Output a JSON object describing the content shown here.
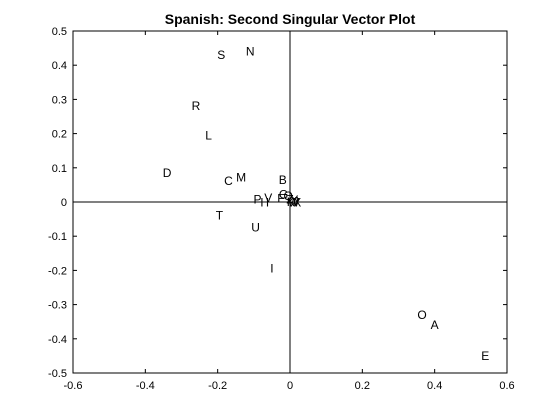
{
  "chart_data": {
    "type": "scatter",
    "title": "Spanish: Second Singular Vector Plot",
    "xlabel": "",
    "ylabel": "",
    "xlim": [
      -0.6,
      0.6
    ],
    "ylim": [
      -0.5,
      0.5
    ],
    "grid": false,
    "xticks": [
      "-0.6",
      "-0.4",
      "-0.2",
      "0",
      "0.2",
      "0.4",
      "0.6"
    ],
    "yticks": [
      "-0.5",
      "-0.4",
      "-0.3",
      "-0.2",
      "-0.1",
      "0",
      "0.1",
      "0.2",
      "0.3",
      "0.4",
      "0.5"
    ],
    "points": [
      {
        "label": "S",
        "x": -0.19,
        "y": 0.43
      },
      {
        "label": "N",
        "x": -0.11,
        "y": 0.44
      },
      {
        "label": "R",
        "x": -0.26,
        "y": 0.28
      },
      {
        "label": "L",
        "x": -0.225,
        "y": 0.195
      },
      {
        "label": "D",
        "x": -0.34,
        "y": 0.085
      },
      {
        "label": "C",
        "x": -0.17,
        "y": 0.062
      },
      {
        "label": "M",
        "x": -0.135,
        "y": 0.072
      },
      {
        "label": "B",
        "x": -0.02,
        "y": 0.065
      },
      {
        "label": "G",
        "x": -0.018,
        "y": 0.022
      },
      {
        "label": "Q",
        "x": -0.005,
        "y": 0.018
      },
      {
        "label": "Z",
        "x": 0.0,
        "y": 0.008
      },
      {
        "label": "Y",
        "x": 0.012,
        "y": 0.006
      },
      {
        "label": "J",
        "x": 0.016,
        "y": 0.002
      },
      {
        "label": "X",
        "x": 0.02,
        "y": -0.002
      },
      {
        "label": "W",
        "x": 0.01,
        "y": -0.002
      },
      {
        "label": "K",
        "x": 0.002,
        "y": 0.0
      },
      {
        "label": "P",
        "x": -0.09,
        "y": 0.008
      },
      {
        "label": "V",
        "x": -0.06,
        "y": 0.012
      },
      {
        "label": "H",
        "x": -0.07,
        "y": -0.002
      },
      {
        "label": "F",
        "x": -0.025,
        "y": 0.01
      },
      {
        "label": "T",
        "x": -0.195,
        "y": -0.04
      },
      {
        "label": "U",
        "x": -0.095,
        "y": -0.075
      },
      {
        "label": "I",
        "x": -0.05,
        "y": -0.195
      },
      {
        "label": "O",
        "x": 0.365,
        "y": -0.33
      },
      {
        "label": "A",
        "x": 0.4,
        "y": -0.36
      },
      {
        "label": "E",
        "x": 0.54,
        "y": -0.45
      }
    ]
  }
}
